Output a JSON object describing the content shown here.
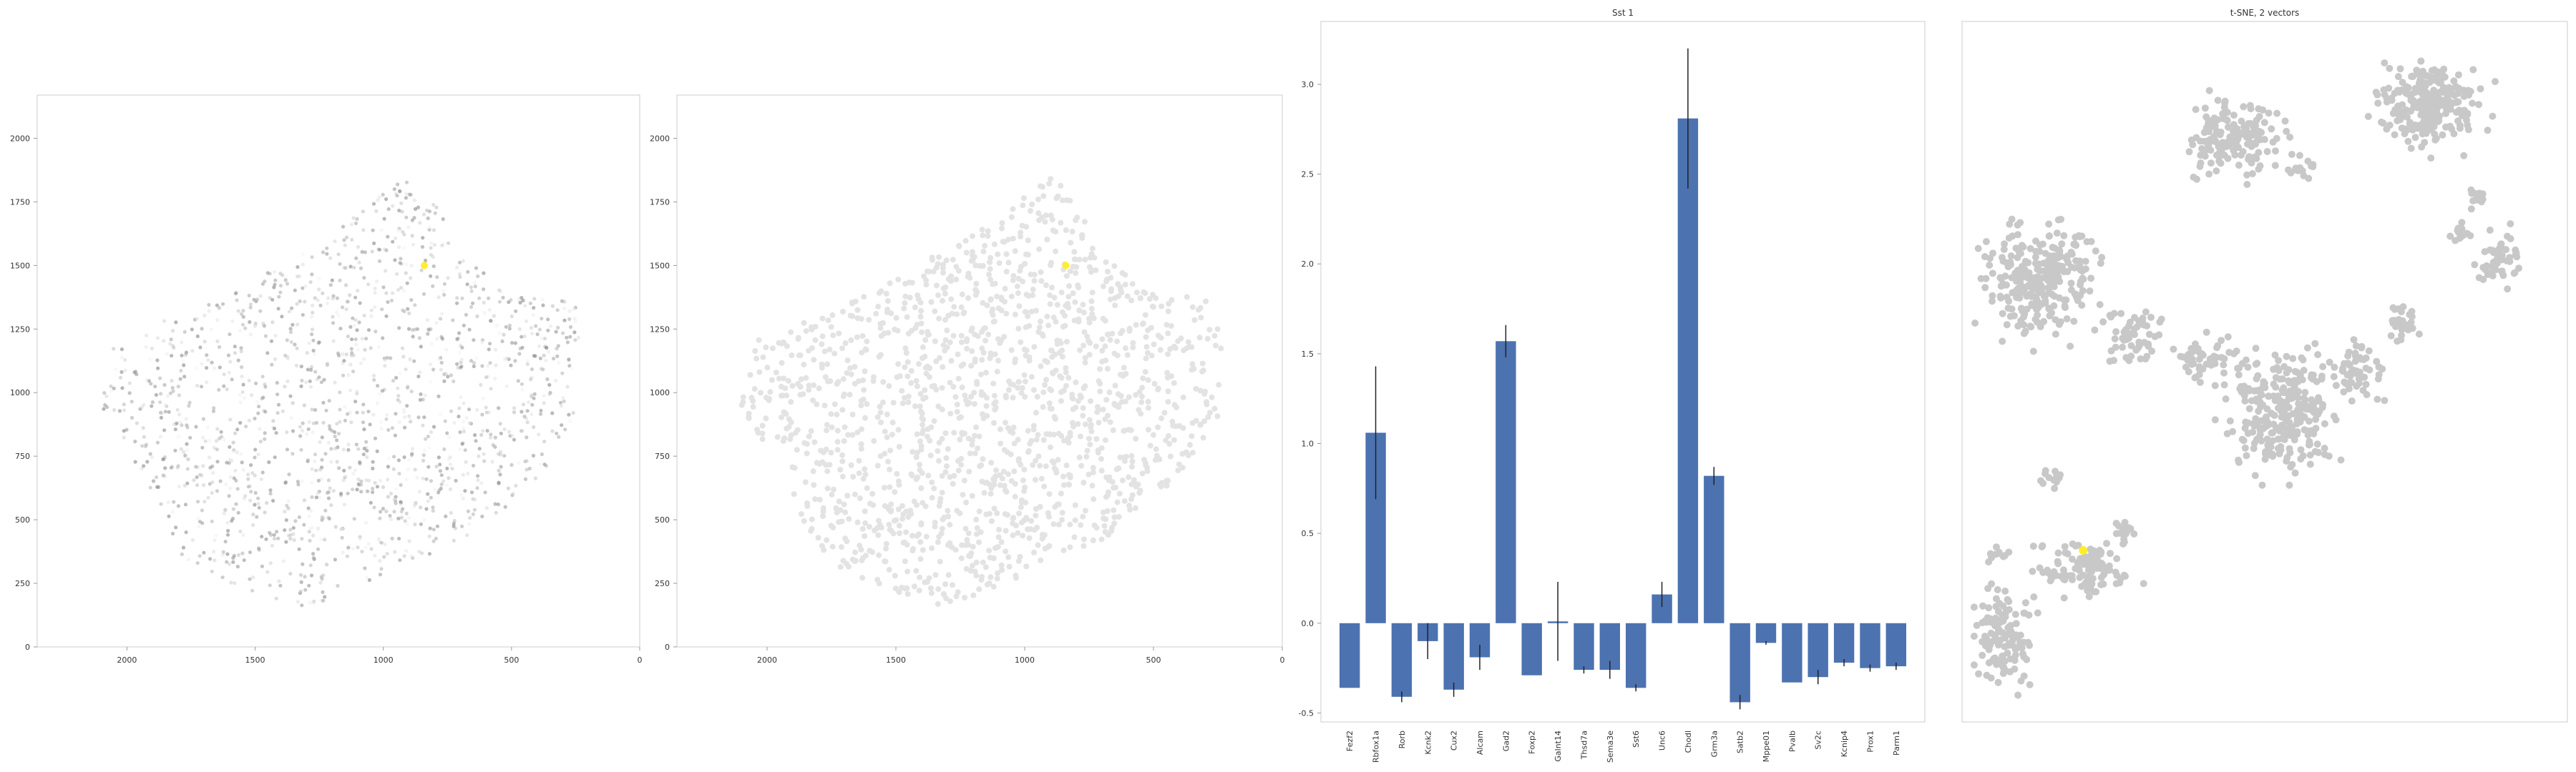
{
  "colors": {
    "bar": "#4c72b0",
    "highlight": "#ffef2a",
    "tsne_point": "#c8c8c8",
    "spatial_gray": "#e3e3e3",
    "axis": "#cccccc",
    "errorbar": "#222222"
  },
  "chart_data": [
    {
      "type": "scatter",
      "title": "",
      "description_grid": false,
      "xlim": [
        2350,
        0
      ],
      "ylim": [
        2170,
        0
      ],
      "x_ticks": [
        "2000",
        "1500",
        "1000",
        "500",
        "0"
      ],
      "y_ticks": [
        "0",
        "250",
        "500",
        "750",
        "1000",
        "1250",
        "1500",
        "1750",
        "2000"
      ],
      "highlight_point": {
        "x": 840,
        "y": 1500
      }
    },
    {
      "type": "scatter",
      "title": "",
      "xlim": [
        2350,
        0
      ],
      "ylim": [
        2170,
        0
      ],
      "x_ticks": [
        "2000",
        "1500",
        "1000",
        "500",
        "0"
      ],
      "y_ticks": [
        "0",
        "250",
        "500",
        "750",
        "1000",
        "1250",
        "1500",
        "1750",
        "2000"
      ],
      "highlight_point": {
        "x": 840,
        "y": 1500
      }
    },
    {
      "type": "bar",
      "title": "Sst 1",
      "categories": [
        "Fezf2",
        "Rbfox1a",
        "Rorb",
        "Kcnk2",
        "Cux2",
        "Alcam",
        "Gad2",
        "Foxp2",
        "Galnt14",
        "Thsd7a",
        "Sema3e",
        "Sst6",
        "Unc6",
        "Chodl",
        "Grm3a",
        "Satb2",
        "Mppe01",
        "Pvalb",
        "Sv2c",
        "Kcnip4",
        "Prox1",
        "Parm1"
      ],
      "values": [
        -0.36,
        1.06,
        -0.41,
        -0.1,
        -0.37,
        -0.19,
        1.57,
        -0.29,
        0.01,
        -0.26,
        -0.26,
        -0.36,
        0.16,
        2.81,
        0.82,
        -0.44,
        -0.11,
        -0.33,
        -0.3,
        -0.22,
        -0.25,
        -0.24
      ],
      "errors": [
        0.0,
        0.37,
        0.03,
        0.1,
        0.04,
        0.07,
        0.09,
        0.0,
        0.22,
        0.02,
        0.05,
        0.02,
        0.07,
        0.39,
        0.05,
        0.04,
        0.01,
        0.0,
        0.04,
        0.02,
        0.02,
        0.02
      ],
      "ylim": [
        -0.55,
        3.35
      ],
      "y_ticks": [
        "-0.5",
        "0.0",
        "0.5",
        "1.0",
        "1.5",
        "2.0",
        "2.5",
        "3.0"
      ],
      "grid": false
    },
    {
      "type": "scatter",
      "title": "t-SNE, 2 vectors",
      "axes_shown": false,
      "highlight_point": {
        "x": 0.2,
        "y": 0.755
      }
    }
  ]
}
